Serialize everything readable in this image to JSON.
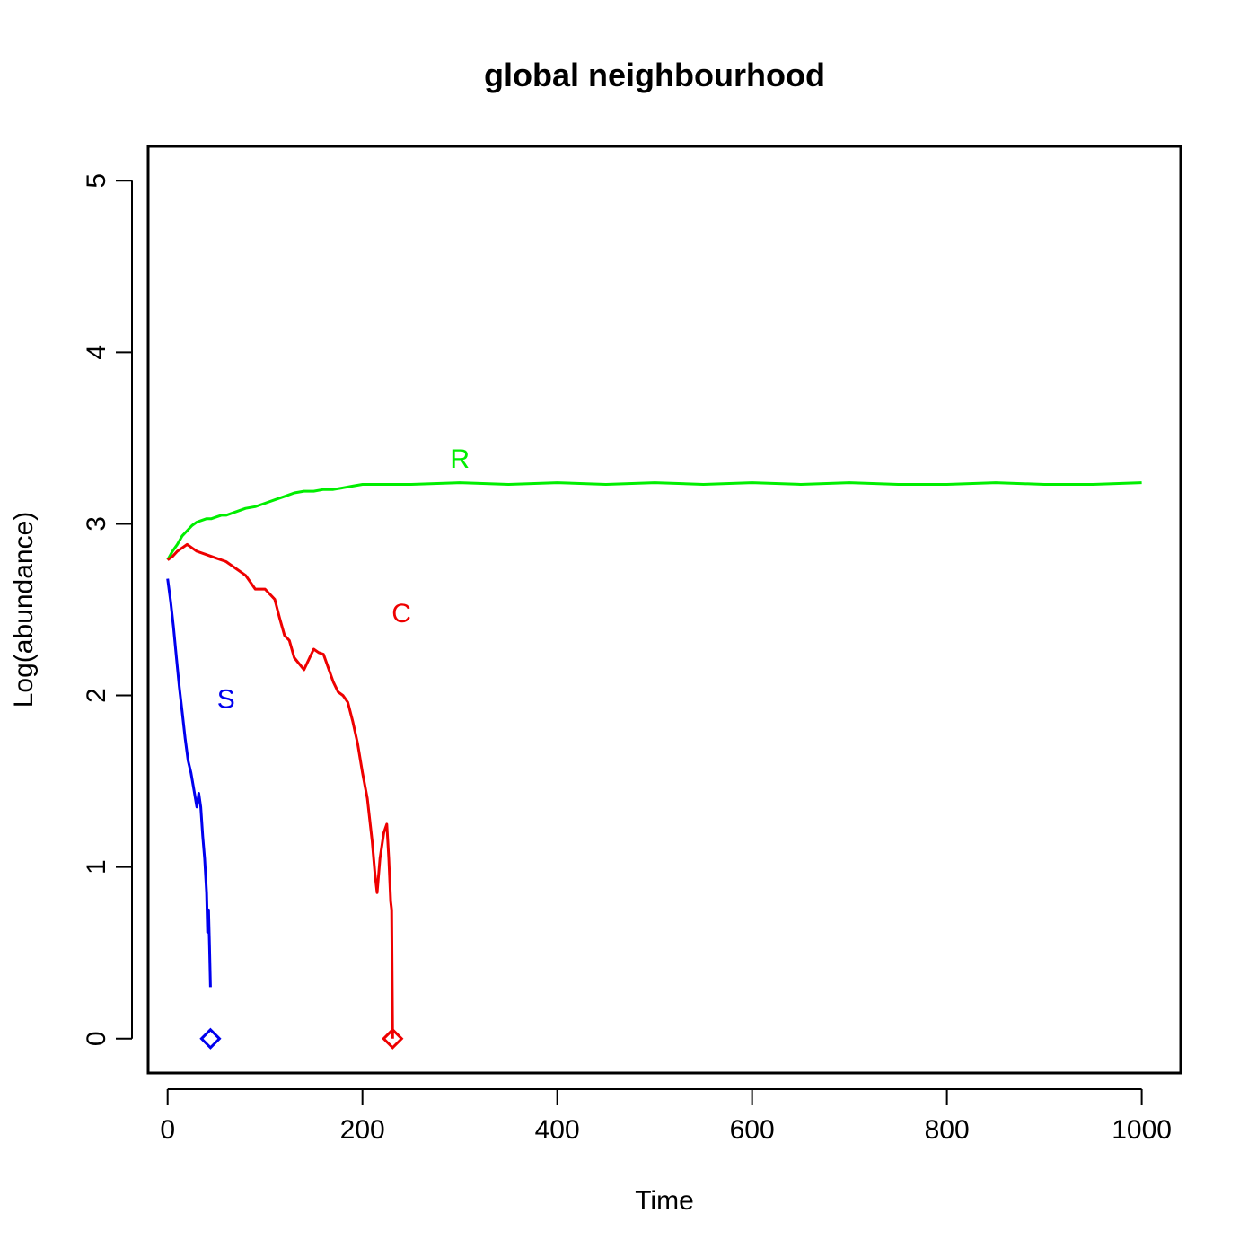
{
  "chart_data": {
    "type": "line",
    "title": "global neighbourhood",
    "xlabel": "Time",
    "ylabel": "Log(abundance)",
    "xlim": [
      -20,
      1040
    ],
    "ylim": [
      -0.2,
      5.2
    ],
    "xticks": [
      0,
      200,
      400,
      600,
      800,
      1000
    ],
    "yticks": [
      0,
      1,
      2,
      3,
      4,
      5
    ],
    "xtick_labels": [
      "0",
      "200",
      "400",
      "600",
      "800",
      "1000"
    ],
    "ytick_labels": [
      "0",
      "1",
      "2",
      "3",
      "4",
      "5"
    ],
    "grid": false,
    "legend": "none",
    "series": [
      {
        "name": "R",
        "color": "#00ee00",
        "label_at": [
          300,
          3.38
        ],
        "points": [
          [
            0,
            2.79
          ],
          [
            5,
            2.84
          ],
          [
            10,
            2.88
          ],
          [
            15,
            2.93
          ],
          [
            20,
            2.96
          ],
          [
            25,
            2.99
          ],
          [
            30,
            3.01
          ],
          [
            35,
            3.02
          ],
          [
            40,
            3.03
          ],
          [
            45,
            3.03
          ],
          [
            50,
            3.04
          ],
          [
            55,
            3.05
          ],
          [
            60,
            3.05
          ],
          [
            70,
            3.07
          ],
          [
            80,
            3.09
          ],
          [
            90,
            3.1
          ],
          [
            100,
            3.12
          ],
          [
            110,
            3.14
          ],
          [
            120,
            3.16
          ],
          [
            130,
            3.18
          ],
          [
            140,
            3.19
          ],
          [
            150,
            3.19
          ],
          [
            160,
            3.2
          ],
          [
            170,
            3.2
          ],
          [
            180,
            3.21
          ],
          [
            190,
            3.22
          ],
          [
            200,
            3.23
          ],
          [
            220,
            3.23
          ],
          [
            250,
            3.23
          ],
          [
            300,
            3.24
          ],
          [
            350,
            3.23
          ],
          [
            400,
            3.24
          ],
          [
            450,
            3.23
          ],
          [
            500,
            3.24
          ],
          [
            550,
            3.23
          ],
          [
            600,
            3.24
          ],
          [
            650,
            3.23
          ],
          [
            700,
            3.24
          ],
          [
            750,
            3.23
          ],
          [
            800,
            3.23
          ],
          [
            850,
            3.24
          ],
          [
            900,
            3.23
          ],
          [
            950,
            3.23
          ],
          [
            1000,
            3.24
          ]
        ]
      },
      {
        "name": "C",
        "color": "#ee0000",
        "label_at": [
          240,
          2.48
        ],
        "points": [
          [
            0,
            2.79
          ],
          [
            5,
            2.81
          ],
          [
            10,
            2.84
          ],
          [
            15,
            2.86
          ],
          [
            20,
            2.88
          ],
          [
            25,
            2.86
          ],
          [
            30,
            2.84
          ],
          [
            40,
            2.82
          ],
          [
            50,
            2.8
          ],
          [
            60,
            2.78
          ],
          [
            70,
            2.74
          ],
          [
            80,
            2.7
          ],
          [
            90,
            2.62
          ],
          [
            100,
            2.62
          ],
          [
            110,
            2.56
          ],
          [
            115,
            2.45
          ],
          [
            120,
            2.35
          ],
          [
            125,
            2.32
          ],
          [
            130,
            2.22
          ],
          [
            140,
            2.15
          ],
          [
            150,
            2.27
          ],
          [
            155,
            2.25
          ],
          [
            160,
            2.24
          ],
          [
            165,
            2.16
          ],
          [
            170,
            2.08
          ],
          [
            175,
            2.02
          ],
          [
            180,
            2.0
          ],
          [
            185,
            1.96
          ],
          [
            190,
            1.85
          ],
          [
            195,
            1.72
          ],
          [
            200,
            1.55
          ],
          [
            205,
            1.4
          ],
          [
            210,
            1.15
          ],
          [
            213,
            0.95
          ],
          [
            215,
            0.85
          ],
          [
            218,
            1.05
          ],
          [
            222,
            1.2
          ],
          [
            225,
            1.25
          ],
          [
            227,
            1.05
          ],
          [
            229,
            0.8
          ],
          [
            230,
            0.75
          ],
          [
            231,
            0.0
          ]
        ]
      },
      {
        "name": "S",
        "color": "#0000ee",
        "label_at": [
          60,
          1.98
        ],
        "points": [
          [
            0,
            2.68
          ],
          [
            3,
            2.55
          ],
          [
            6,
            2.4
          ],
          [
            9,
            2.22
          ],
          [
            12,
            2.05
          ],
          [
            15,
            1.9
          ],
          [
            18,
            1.75
          ],
          [
            21,
            1.62
          ],
          [
            24,
            1.55
          ],
          [
            27,
            1.45
          ],
          [
            30,
            1.35
          ],
          [
            32,
            1.43
          ],
          [
            34,
            1.35
          ],
          [
            36,
            1.18
          ],
          [
            38,
            1.05
          ],
          [
            40,
            0.85
          ],
          [
            41,
            0.62
          ],
          [
            42,
            0.75
          ],
          [
            43,
            0.55
          ],
          [
            44,
            0.3
          ]
        ]
      }
    ],
    "markers": [
      {
        "name": "S-extinction",
        "x": 44,
        "y": 0,
        "shape": "diamond",
        "color": "#0000ee"
      },
      {
        "name": "C-extinction",
        "x": 231,
        "y": 0,
        "shape": "diamond",
        "color": "#ee0000"
      }
    ]
  }
}
